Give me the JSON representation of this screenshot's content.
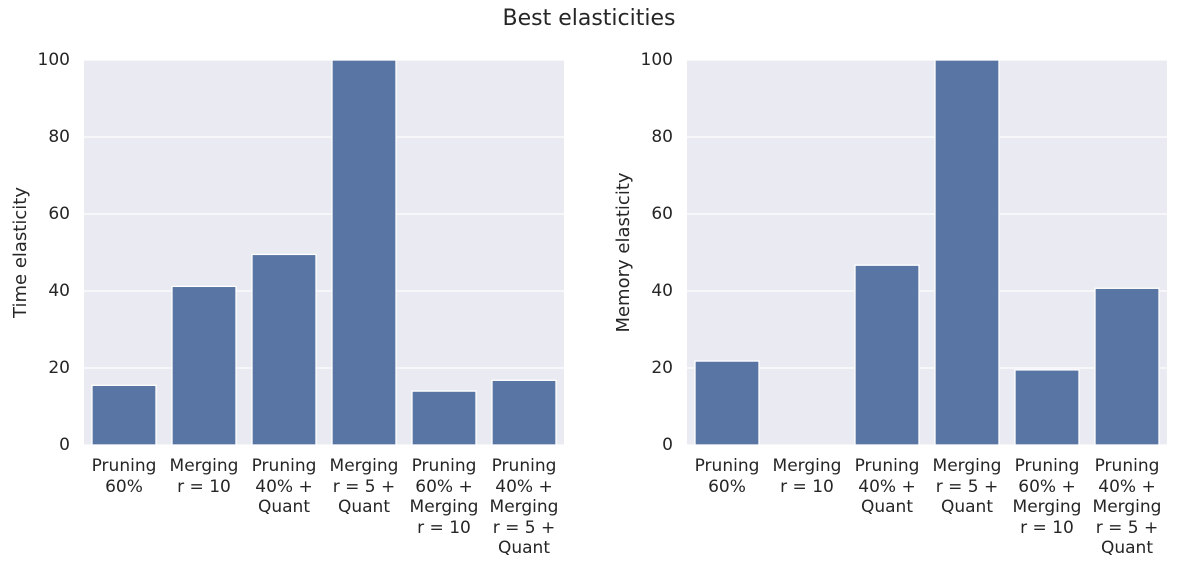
{
  "title": "Best elasticities",
  "chart_data": [
    {
      "type": "bar",
      "ylabel": "Time elasticity",
      "categories": [
        "Pruning\n60%",
        "Merging\nr = 10",
        "Pruning\n40% +\nQuant",
        "Merging\nr = 5 +\nQuant",
        "Pruning\n60% +\nMerging\nr = 10",
        "Pruning\n40% +\nMerging\nr = 5 +\nQuant"
      ],
      "values": [
        15.5,
        41.2,
        49.5,
        100,
        14,
        16.8
      ],
      "color": "#5975a4",
      "ylim": [
        0,
        100
      ],
      "yticks": [
        0,
        20,
        40,
        60,
        80,
        100
      ],
      "grid": true
    },
    {
      "type": "bar",
      "ylabel": "Memory elasticity",
      "categories": [
        "Pruning\n60%",
        "Merging\nr = 10",
        "Pruning\n40% +\nQuant",
        "Merging\nr = 5 +\nQuant",
        "Pruning\n60% +\nMerging\nr = 10",
        "Pruning\n40% +\nMerging\nr = 5 +\nQuant"
      ],
      "values": [
        21.8,
        0,
        46.7,
        100,
        19.5,
        40.7
      ],
      "color": "#5975a4",
      "ylim": [
        0,
        100
      ],
      "yticks": [
        0,
        20,
        40,
        60,
        80,
        100
      ],
      "grid": true
    }
  ]
}
